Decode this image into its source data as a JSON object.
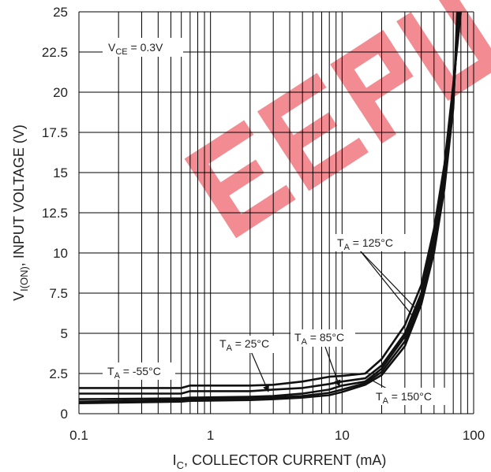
{
  "chart_data": {
    "type": "line",
    "title": "",
    "xlabel": {
      "main": "I",
      "sub": "C",
      "rest": ", COLLECTOR CURRENT (mA)"
    },
    "ylabel": {
      "main": "V",
      "sub": "I(ON)",
      "rest": ", INPUT VOLTAGE (V)"
    },
    "xscale": "log",
    "xlim": [
      0.1,
      100
    ],
    "ylim": [
      0,
      25
    ],
    "grid": true,
    "x_ticks": [
      "0.1",
      "1",
      "10",
      "100"
    ],
    "y_ticks": [
      "0",
      "2.5",
      "5",
      "7.5",
      "10",
      "12.5",
      "15",
      "17.5",
      "20",
      "22.5",
      "25"
    ],
    "annotations": [
      {
        "id": "vce",
        "main": "V",
        "sub": "CE",
        "rest": " = 0.3V"
      },
      {
        "id": "ta-n55",
        "main": "T",
        "sub": "A",
        "rest": " = -55°C"
      },
      {
        "id": "ta-25",
        "main": "T",
        "sub": "A",
        "rest": " = 25°C"
      },
      {
        "id": "ta-85",
        "main": "T",
        "sub": "A",
        "rest": " = 85°C"
      },
      {
        "id": "ta-125",
        "main": "T",
        "sub": "A",
        "rest": " = 125°C"
      },
      {
        "id": "ta-150",
        "main": "T",
        "sub": "A",
        "rest": " = 150°C"
      }
    ],
    "series": [
      {
        "name": "TA = -55°C",
        "x": [
          0.1,
          0.6,
          0.7,
          2,
          3,
          5,
          8,
          10,
          15,
          20,
          30,
          40,
          50,
          60,
          70,
          80
        ],
        "y": [
          1.6,
          1.6,
          1.75,
          1.75,
          1.8,
          2.0,
          2.3,
          2.35,
          2.5,
          3.4,
          5.5,
          8.0,
          11.5,
          15.5,
          20.5,
          25
        ]
      },
      {
        "name": "TA = 25°C",
        "x": [
          0.1,
          0.6,
          0.7,
          2,
          3,
          5,
          8,
          10,
          15,
          20,
          30,
          40,
          50,
          60,
          70,
          78
        ],
        "y": [
          1.25,
          1.25,
          1.4,
          1.4,
          1.5,
          1.6,
          1.85,
          2.0,
          2.2,
          3.0,
          5.0,
          7.5,
          11.0,
          15.0,
          20.0,
          25
        ]
      },
      {
        "name": "TA = 85°C",
        "x": [
          0.1,
          0.6,
          0.7,
          2,
          3,
          5,
          8,
          10,
          15,
          20,
          30,
          40,
          50,
          60,
          70,
          77
        ],
        "y": [
          0.9,
          0.95,
          1.0,
          1.05,
          1.1,
          1.25,
          1.5,
          1.75,
          2.0,
          2.8,
          4.8,
          7.2,
          10.5,
          14.5,
          19.5,
          25
        ]
      },
      {
        "name": "TA = 125°C",
        "x": [
          0.1,
          0.6,
          0.7,
          2,
          3,
          5,
          8,
          10,
          15,
          20,
          30,
          40,
          50,
          60,
          70,
          76
        ],
        "y": [
          0.75,
          0.85,
          0.9,
          0.95,
          1.0,
          1.1,
          1.3,
          1.5,
          1.9,
          2.6,
          4.5,
          7.0,
          10.2,
          14.2,
          19.2,
          25
        ]
      },
      {
        "name": "TA = 150°C",
        "x": [
          0.1,
          0.6,
          0.7,
          2,
          3,
          5,
          8,
          10,
          15,
          20,
          30,
          40,
          50,
          60,
          70,
          75
        ],
        "y": [
          0.65,
          0.75,
          0.8,
          0.85,
          0.9,
          1.0,
          1.15,
          1.35,
          1.8,
          2.4,
          4.2,
          6.8,
          10.0,
          14.0,
          19.0,
          25
        ]
      }
    ],
    "watermark": {
      "text": "EEPW",
      "color": "#e8303a"
    }
  }
}
